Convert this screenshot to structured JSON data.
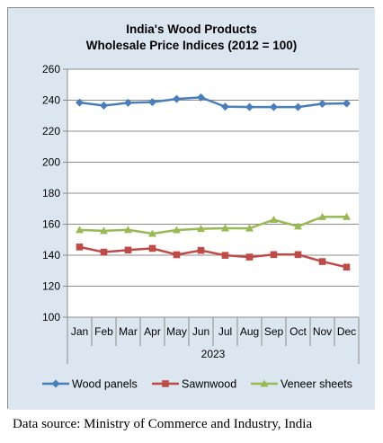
{
  "chart_data": {
    "type": "line",
    "title_line1": "India's Wood Products",
    "title_line2": "Wholesale Price Indices (2012 = 100)",
    "xlabel": "2023",
    "categories": [
      "Jan",
      "Feb",
      "Mar",
      "Apr",
      "May",
      "Jun",
      "Jul",
      "Aug",
      "Sep",
      "Oct",
      "Nov",
      "Dec"
    ],
    "ylim": [
      100,
      260
    ],
    "yticks": [
      100,
      120,
      140,
      160,
      180,
      200,
      220,
      240,
      260
    ],
    "grid": true,
    "legend_position": "bottom",
    "series": [
      {
        "name": "Wood panels",
        "color": "#4a7ebb",
        "marker": "diamond",
        "values": [
          238.5,
          236.5,
          238.3,
          238.8,
          240.8,
          241.8,
          235.8,
          235.6,
          235.6,
          235.6,
          237.7,
          237.9
        ]
      },
      {
        "name": "Sawnwood",
        "color": "#be4b48",
        "marker": "square",
        "values": [
          145.3,
          142.0,
          143.3,
          144.4,
          140.3,
          143.1,
          139.9,
          138.8,
          140.4,
          140.4,
          135.9,
          132.3
        ]
      },
      {
        "name": "Veneer sheets",
        "color": "#98b954",
        "marker": "triangle",
        "values": [
          156.3,
          155.7,
          156.4,
          153.9,
          156.2,
          157.0,
          157.4,
          157.3,
          162.9,
          158.6,
          164.7,
          164.8
        ]
      }
    ]
  },
  "source_text": "Data source: Ministry of Commerce and Industry, India"
}
